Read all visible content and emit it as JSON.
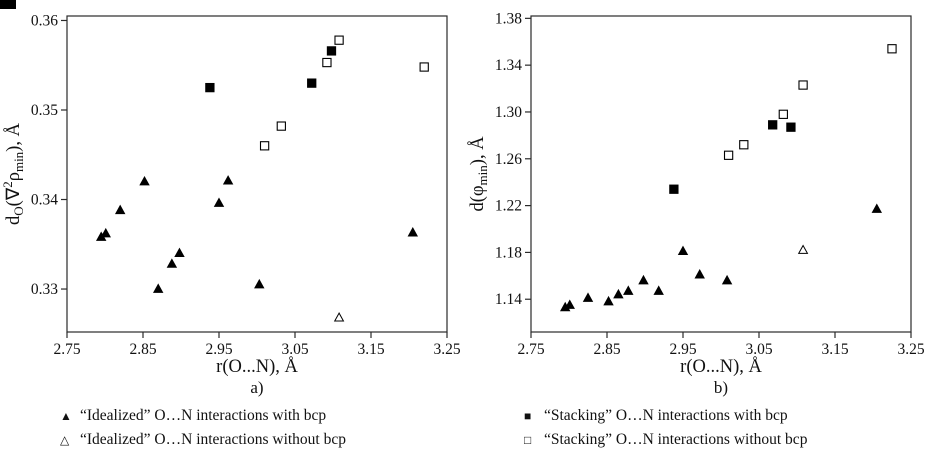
{
  "page": {
    "background": "#ffffff",
    "text_color": "#111111",
    "marker_color": "#000000"
  },
  "legends": {
    "left": [
      {
        "name": "idealized-with-bcp",
        "marker": "triangle-filled",
        "glyph": "▲",
        "label": "“Idealized” O…N interactions with bcp"
      },
      {
        "name": "idealized-without-bcp",
        "marker": "triangle-open",
        "glyph": "△",
        "label": "“Idealized” O…N interactions without bcp"
      }
    ],
    "right": [
      {
        "name": "stacking-with-bcp",
        "marker": "square-filled",
        "glyph": "■",
        "label": "“Stacking” O…N interactions with bcp"
      },
      {
        "name": "stacking-without-bcp",
        "marker": "square-open",
        "glyph": "□",
        "label": "“Stacking” O…N interactions without bcp"
      }
    ]
  },
  "chart_data": [
    {
      "type": "scatter",
      "panel_label": "a)",
      "xlabel": "r(O...N), Å",
      "ylabel": "dO(∇²ρmin), Å",
      "ylabel_segments": [
        {
          "text": "d",
          "style": "normal"
        },
        {
          "text": "O",
          "style": "sub"
        },
        {
          "text": "(∇",
          "style": "normal"
        },
        {
          "text": "2",
          "style": "sup"
        },
        {
          "text": "ρ",
          "style": "normal"
        },
        {
          "text": "min",
          "style": "sub"
        },
        {
          "text": "), Å",
          "style": "normal"
        }
      ],
      "xlim": [
        2.75,
        3.25
      ],
      "ylim": [
        0.3252,
        0.3605
      ],
      "xticks": [
        2.75,
        2.85,
        2.95,
        3.05,
        3.15,
        3.25
      ],
      "xtick_labels": [
        "2.75",
        "2.85",
        "2.95",
        "3.05",
        "3.15",
        "3.25"
      ],
      "yticks": [
        0.33,
        0.34,
        0.35,
        0.36
      ],
      "ytick_labels": [
        "0.33",
        "0.34",
        "0.35",
        "0.36"
      ],
      "grid": false,
      "legend_position": "below",
      "series": [
        {
          "name": "idealized-with-bcp",
          "label": "“Idealized” O…N interactions with bcp",
          "marker": "triangle-filled",
          "points": [
            [
              2.795,
              0.3358
            ],
            [
              2.801,
              0.3362
            ],
            [
              2.82,
              0.3388
            ],
            [
              2.852,
              0.342
            ],
            [
              2.87,
              0.33
            ],
            [
              2.888,
              0.3328
            ],
            [
              2.898,
              0.334
            ],
            [
              2.95,
              0.3396
            ],
            [
              2.962,
              0.3421
            ],
            [
              3.003,
              0.3305
            ],
            [
              3.205,
              0.3363
            ]
          ]
        },
        {
          "name": "idealized-without-bcp",
          "label": "“Idealized” O…N interactions without bcp",
          "marker": "triangle-open",
          "points": [
            [
              3.108,
              0.3268
            ]
          ]
        },
        {
          "name": "stacking-with-bcp",
          "label": "“Stacking” O…N interactions with bcp",
          "marker": "square-filled",
          "points": [
            [
              2.938,
              0.3525
            ],
            [
              3.072,
              0.353
            ],
            [
              3.098,
              0.3566
            ]
          ]
        },
        {
          "name": "stacking-without-bcp",
          "label": "“Stacking” O…N interactions without bcp",
          "marker": "square-open",
          "points": [
            [
              3.01,
              0.346
            ],
            [
              3.032,
              0.3482
            ],
            [
              3.092,
              0.3553
            ],
            [
              3.108,
              0.3578
            ],
            [
              3.22,
              0.3548
            ]
          ]
        }
      ]
    },
    {
      "type": "scatter",
      "panel_label": "b)",
      "xlabel": "r(O...N), Å",
      "ylabel": "d(φmin), Å",
      "ylabel_segments": [
        {
          "text": "d(φ",
          "style": "normal"
        },
        {
          "text": "min",
          "style": "sub"
        },
        {
          "text": "), Å",
          "style": "normal"
        }
      ],
      "xlim": [
        2.75,
        3.25
      ],
      "ylim": [
        1.112,
        1.382
      ],
      "xticks": [
        2.75,
        2.85,
        2.95,
        3.05,
        3.15,
        3.25
      ],
      "xtick_labels": [
        "2.75",
        "2.85",
        "2.95",
        "3.05",
        "3.15",
        "3.25"
      ],
      "yticks": [
        1.14,
        1.18,
        1.22,
        1.26,
        1.3,
        1.34,
        1.38
      ],
      "ytick_labels": [
        "1.14",
        "1.18",
        "1.22",
        "1.26",
        "1.30",
        "1.34",
        "1.38"
      ],
      "grid": false,
      "legend_position": "below",
      "series": [
        {
          "name": "idealized-with-bcp",
          "label": "“Idealized” O…N interactions with bcp",
          "marker": "triangle-filled",
          "points": [
            [
              2.795,
              1.133
            ],
            [
              2.801,
              1.135
            ],
            [
              2.825,
              1.141
            ],
            [
              2.852,
              1.138
            ],
            [
              2.865,
              1.144
            ],
            [
              2.878,
              1.147
            ],
            [
              2.898,
              1.156
            ],
            [
              2.918,
              1.147
            ],
            [
              2.95,
              1.181
            ],
            [
              2.972,
              1.161
            ],
            [
              3.008,
              1.156
            ],
            [
              3.205,
              1.217
            ]
          ]
        },
        {
          "name": "idealized-without-bcp",
          "label": "“Idealized” O…N interactions without bcp",
          "marker": "triangle-open",
          "points": [
            [
              3.108,
              1.182
            ]
          ]
        },
        {
          "name": "stacking-with-bcp",
          "label": "“Stacking” O…N interactions with bcp",
          "marker": "square-filled",
          "points": [
            [
              2.938,
              1.234
            ],
            [
              3.068,
              1.289
            ],
            [
              3.092,
              1.287
            ]
          ]
        },
        {
          "name": "stacking-without-bcp",
          "label": "“Stacking” O…N interactions without bcp",
          "marker": "square-open",
          "points": [
            [
              3.01,
              1.263
            ],
            [
              3.03,
              1.272
            ],
            [
              3.082,
              1.298
            ],
            [
              3.108,
              1.323
            ],
            [
              3.225,
              1.354
            ]
          ]
        }
      ]
    }
  ]
}
